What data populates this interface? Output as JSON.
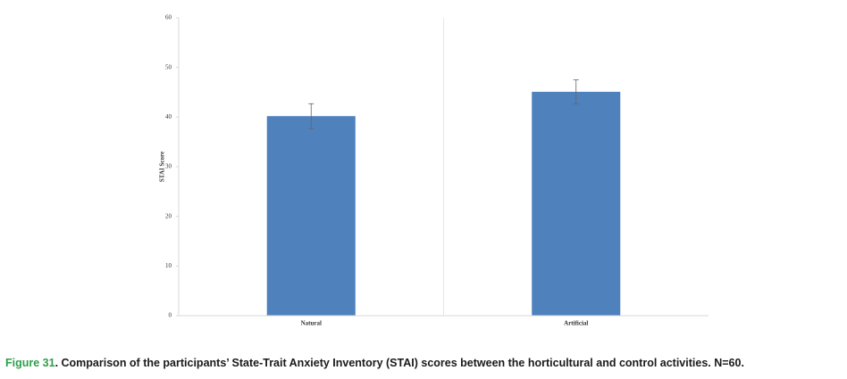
{
  "chart_data": {
    "type": "bar",
    "y_label": "STAI Score",
    "categories": [
      "Natural",
      "Artificial"
    ],
    "values": [
      40.2,
      45.1
    ],
    "errors": [
      2.5,
      2.4
    ],
    "color": "#4f81bd",
    "ylim": [
      0,
      60
    ],
    "yticks": [
      0,
      10,
      20,
      30,
      40,
      50,
      60
    ],
    "grid": false
  },
  "caption": {
    "label": "Figure 31",
    "text": ". Comparison of the participants’ State-Trait Anxiety Inventory (STAI) scores between the horticultural and control activities. N=60."
  }
}
